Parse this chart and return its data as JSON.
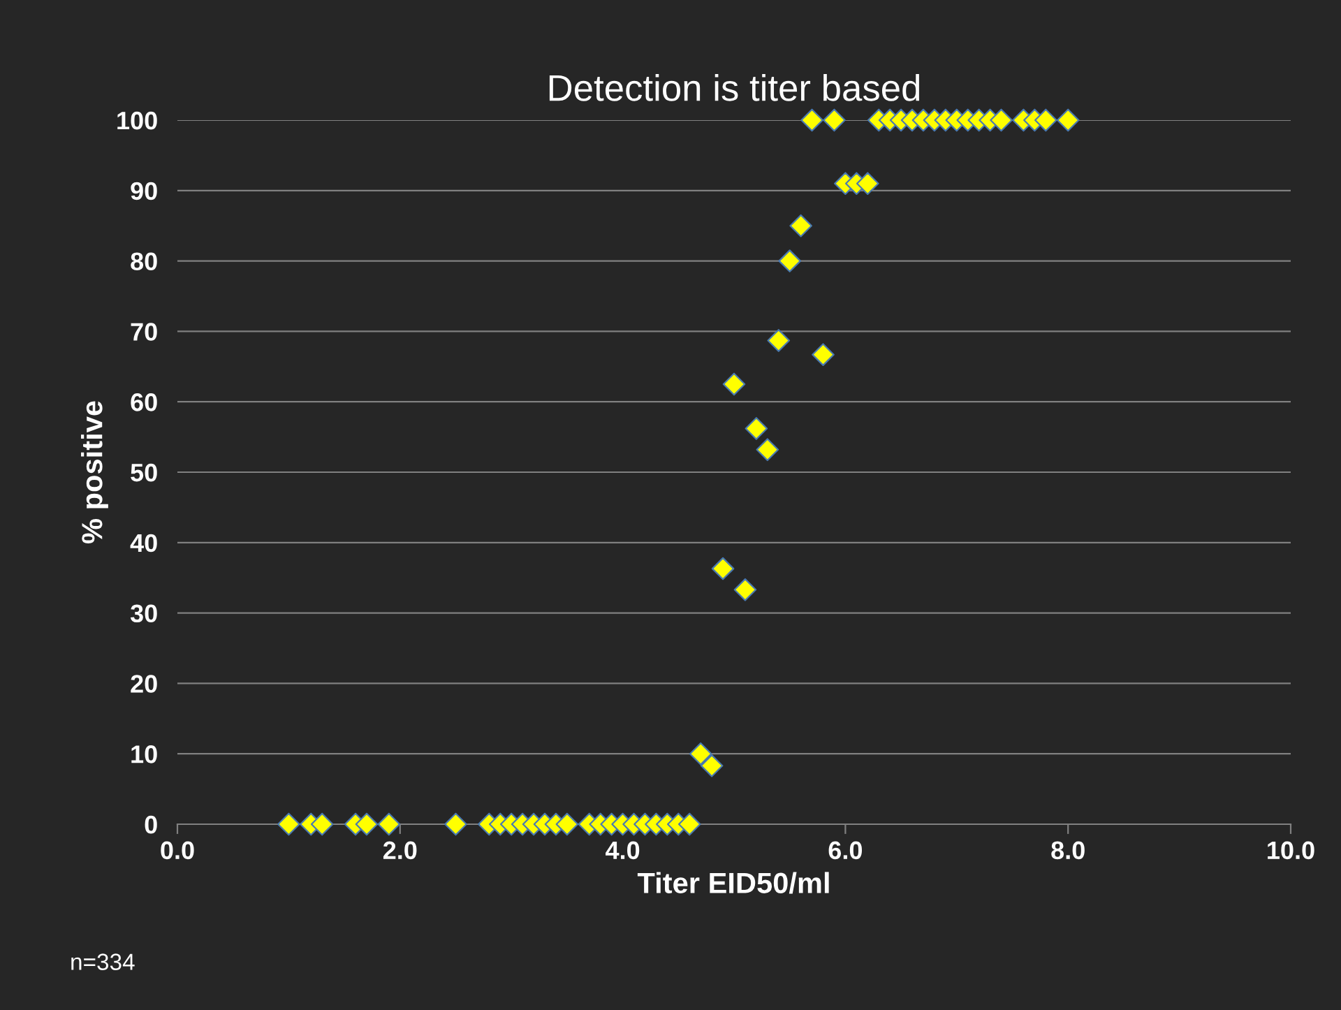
{
  "chart_data": {
    "type": "scatter",
    "title": "Detection is titer based",
    "xlabel": "Titer EID50/ml",
    "ylabel": "% positive",
    "x": [
      1.0,
      1.2,
      1.3,
      1.6,
      1.7,
      1.9,
      2.5,
      2.8,
      2.9,
      3.0,
      3.1,
      3.2,
      3.3,
      3.4,
      3.5,
      3.7,
      3.8,
      3.9,
      4.0,
      4.1,
      4.2,
      4.3,
      4.4,
      4.5,
      4.6,
      4.7,
      4.8,
      4.9,
      5.1,
      5.0,
      5.2,
      5.3,
      5.4,
      5.8,
      5.5,
      5.6,
      6.0,
      6.1,
      6.2,
      5.7,
      5.9,
      6.3,
      6.4,
      6.5,
      6.6,
      6.7,
      6.8,
      6.9,
      7.0,
      7.1,
      7.2,
      7.3,
      7.4,
      7.6,
      7.7,
      7.8,
      8.0
    ],
    "series": [
      {
        "color": "#ffff00",
        "values": [
          0,
          0,
          0,
          0,
          0,
          0,
          0,
          0,
          0,
          0,
          0,
          0,
          0,
          0,
          0,
          0,
          0,
          0,
          0,
          0,
          0,
          0,
          0,
          0,
          0,
          10,
          8.3,
          36.3,
          33.3,
          62.5,
          56.2,
          53.2,
          68.7,
          66.7,
          80,
          85,
          91,
          91,
          91,
          100,
          100,
          100,
          100,
          100,
          100,
          100,
          100,
          100,
          100,
          100,
          100,
          100,
          100,
          100,
          100,
          100,
          100
        ]
      }
    ],
    "marker": "diamond",
    "grid": "y",
    "xlim": [
      0,
      10
    ],
    "xticks": [
      {
        "value": 0,
        "label": "0.0"
      },
      {
        "value": 2,
        "label": "2.0"
      },
      {
        "value": 4,
        "label": "4.0"
      },
      {
        "value": 6,
        "label": "6.0"
      },
      {
        "value": 8,
        "label": "8.0"
      },
      {
        "value": 10,
        "label": "10.0"
      }
    ],
    "ylim": [
      0,
      100
    ],
    "yticks": [
      0,
      10,
      20,
      30,
      40,
      50,
      60,
      70,
      80,
      90,
      100
    ],
    "annotations": [
      "n=334"
    ]
  }
}
